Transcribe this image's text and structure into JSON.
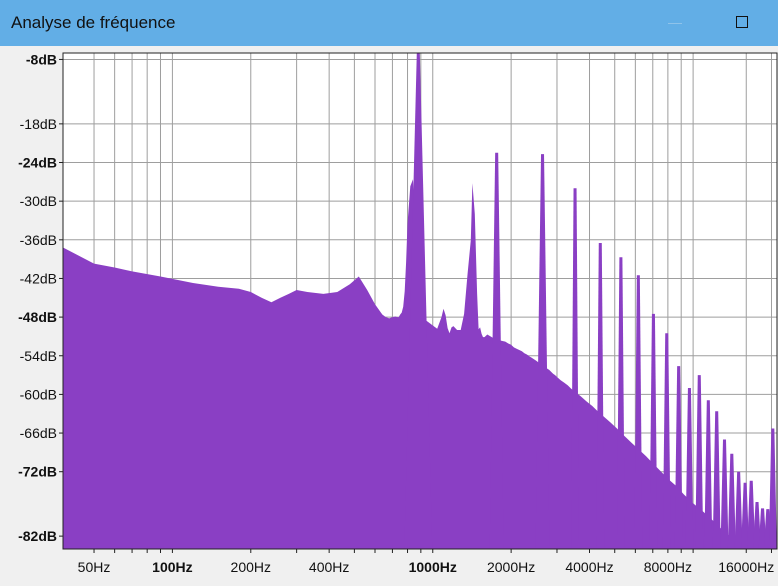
{
  "window": {
    "title": "Analyse de fréquence",
    "minimize_icon": "minimize-icon",
    "maximize_icon": "maximize-icon"
  },
  "colors": {
    "titlebar": "#62aee6",
    "spectrum": "#8a3fc4",
    "plot_bg": "#ffffff",
    "grid": "#9e9e9e"
  },
  "chart_data": {
    "type": "area",
    "title": "Analyse de fréquence",
    "xscale": "log",
    "xlim": [
      38,
      21000
    ],
    "ylim": [
      -84,
      -7
    ],
    "y_ticks": [
      {
        "value": -8,
        "label": "-8dB",
        "bold": true
      },
      {
        "value": -18,
        "label": "-18dB",
        "bold": false
      },
      {
        "value": -24,
        "label": "-24dB",
        "bold": true
      },
      {
        "value": -30,
        "label": "-30dB",
        "bold": false
      },
      {
        "value": -36,
        "label": "-36dB",
        "bold": false
      },
      {
        "value": -42,
        "label": "-42dB",
        "bold": false
      },
      {
        "value": -48,
        "label": "-48dB",
        "bold": true
      },
      {
        "value": -54,
        "label": "-54dB",
        "bold": false
      },
      {
        "value": -60,
        "label": "-60dB",
        "bold": false
      },
      {
        "value": -66,
        "label": "-66dB",
        "bold": false
      },
      {
        "value": -72,
        "label": "-72dB",
        "bold": true
      },
      {
        "value": -82,
        "label": "-82dB",
        "bold": true
      }
    ],
    "x_ticks": [
      {
        "value": 50,
        "label": "50Hz",
        "bold": false
      },
      {
        "value": 100,
        "label": "100Hz",
        "bold": true
      },
      {
        "value": 200,
        "label": "200Hz",
        "bold": false
      },
      {
        "value": 400,
        "label": "400Hz",
        "bold": false
      },
      {
        "value": 1000,
        "label": "1000Hz",
        "bold": true
      },
      {
        "value": 2000,
        "label": "2000Hz",
        "bold": false
      },
      {
        "value": 4000,
        "label": "4000Hz",
        "bold": false
      },
      {
        "value": 8000,
        "label": "8000Hz",
        "bold": false
      },
      {
        "value": 16000,
        "label": "16000Hz",
        "bold": false
      }
    ],
    "x_minor_ticks": [
      60,
      70,
      80,
      90,
      300,
      500,
      600,
      700,
      800,
      900,
      3000,
      5000,
      6000,
      7000,
      9000,
      10000,
      20000
    ],
    "spectrum": {
      "freq_hz": [
        38,
        50,
        60,
        70,
        90,
        120,
        150,
        180,
        200,
        220,
        240,
        260,
        280,
        300,
        330,
        380,
        430,
        480,
        520,
        560,
        600,
        640,
        660,
        680,
        700,
        720,
        730,
        740,
        750,
        760,
        770,
        780,
        790,
        800,
        820,
        840,
        880,
        940,
        1000,
        1040,
        1080,
        1100,
        1120,
        1140,
        1160,
        1180,
        1200,
        1240,
        1280,
        1320,
        1360,
        1400,
        1420,
        1450,
        1480,
        1500,
        1520,
        1540,
        1560,
        1580,
        1620,
        1700,
        1800,
        1900,
        1950,
        2000,
        2050,
        2100,
        2150,
        2200,
        2250,
        2300,
        2350,
        2400,
        2500,
        2600,
        2700,
        2800,
        2850,
        2900,
        2950,
        3000,
        3100,
        3200,
        3300,
        3400,
        3500,
        3700,
        3900,
        4100,
        4300,
        4500,
        4800,
        5100,
        5400,
        5800,
        6200,
        6600,
        7000,
        7500,
        8000,
        8600,
        9200,
        10000,
        11000,
        12000,
        13000,
        14000,
        15000,
        16000,
        17000,
        18000,
        19000,
        20000,
        21000
      ],
      "level_db": [
        -37.2,
        -39.7,
        -40.3,
        -40.9,
        -41.7,
        -42.7,
        -43.3,
        -43.6,
        -44.1,
        -45.0,
        -45.7,
        -45.0,
        -44.4,
        -43.8,
        -44.1,
        -44.4,
        -44.1,
        -42.9,
        -41.7,
        -43.8,
        -46.0,
        -47.6,
        -48.0,
        -48.2,
        -48.0,
        -47.9,
        -48.0,
        -48.0,
        -47.6,
        -47.3,
        -46.4,
        -44.0,
        -39.5,
        -33.5,
        -27.7,
        -26.6,
        -44.5,
        -48.5,
        -49.3,
        -49.8,
        -48.0,
        -46.7,
        -47.7,
        -49.7,
        -50.5,
        -49.6,
        -49.4,
        -50.0,
        -50.0,
        -47.5,
        -41.4,
        -36.1,
        -27.2,
        -32.0,
        -44.3,
        -49.9,
        -49.6,
        -50.6,
        -51.1,
        -51.1,
        -50.7,
        -51.2,
        -51.6,
        -51.8,
        -52.1,
        -52.3,
        -52.7,
        -52.9,
        -53.1,
        -53.3,
        -53.6,
        -53.8,
        -54.1,
        -54.3,
        -54.8,
        -55.3,
        -55.8,
        -56.2,
        -56.5,
        -56.8,
        -57.0,
        -57.3,
        -57.8,
        -58.2,
        -58.6,
        -59.1,
        -59.5,
        -60.3,
        -61.1,
        -61.8,
        -62.6,
        -63.3,
        -64.3,
        -65.3,
        -66.3,
        -67.5,
        -68.6,
        -69.6,
        -70.7,
        -71.9,
        -73.1,
        -74.2,
        -75.5,
        -76.9,
        -78.3,
        -79.7,
        -81.1,
        -82.2,
        -83.2,
        -84.0,
        -84.0,
        -84.0,
        -84.0,
        -84.0,
        -84.0
      ],
      "peaks": [
        {
          "freq_hz": 880,
          "level_db": -7.0
        },
        {
          "freq_hz": 1760,
          "level_db": -22.5
        },
        {
          "freq_hz": 2640,
          "level_db": -22.7
        },
        {
          "freq_hz": 3520,
          "level_db": -28.0
        },
        {
          "freq_hz": 4400,
          "level_db": -36.5
        },
        {
          "freq_hz": 5280,
          "level_db": -38.7
        },
        {
          "freq_hz": 6160,
          "level_db": -41.5
        },
        {
          "freq_hz": 7040,
          "level_db": -47.5
        },
        {
          "freq_hz": 7920,
          "level_db": -50.5
        },
        {
          "freq_hz": 8800,
          "level_db": -55.6
        },
        {
          "freq_hz": 9680,
          "level_db": -59.0
        },
        {
          "freq_hz": 10560,
          "level_db": -57.0
        },
        {
          "freq_hz": 11440,
          "level_db": -60.9
        },
        {
          "freq_hz": 12320,
          "level_db": -62.6
        },
        {
          "freq_hz": 13200,
          "level_db": -67.0
        },
        {
          "freq_hz": 14080,
          "level_db": -69.2
        },
        {
          "freq_hz": 14960,
          "level_db": -72.0
        },
        {
          "freq_hz": 15840,
          "level_db": -73.7
        },
        {
          "freq_hz": 16720,
          "level_db": -73.4
        },
        {
          "freq_hz": 17600,
          "level_db": -76.7
        },
        {
          "freq_hz": 18480,
          "level_db": -77.7
        },
        {
          "freq_hz": 19360,
          "level_db": -77.8
        },
        {
          "freq_hz": 20240,
          "level_db": -65.3
        }
      ]
    }
  }
}
